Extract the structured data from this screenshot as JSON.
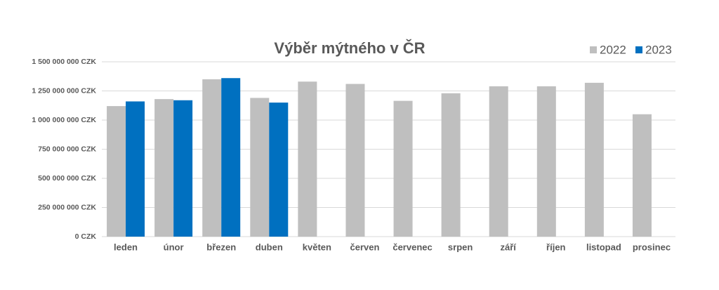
{
  "chart_data": {
    "type": "bar",
    "title": "Výběr mýtného v ČR",
    "categories": [
      "leden",
      "únor",
      "březen",
      "duben",
      "květen",
      "červen",
      "červenec",
      "srpen",
      "září",
      "říjen",
      "listopad",
      "prosinec"
    ],
    "series": [
      {
        "name": "2022",
        "color": "#bfbfbf",
        "values": [
          1120000000,
          1180000000,
          1350000000,
          1190000000,
          1330000000,
          1310000000,
          1165000000,
          1230000000,
          1290000000,
          1290000000,
          1320000000,
          1050000000
        ]
      },
      {
        "name": "2023",
        "color": "#0070c0",
        "values": [
          1160000000,
          1170000000,
          1360000000,
          1150000000,
          null,
          null,
          null,
          null,
          null,
          null,
          null,
          null
        ]
      }
    ],
    "ylim": [
      0,
      1500000000
    ],
    "yticks": [
      {
        "value": 0,
        "label": "0 CZK"
      },
      {
        "value": 250000000,
        "label": "250 000 000 CZK"
      },
      {
        "value": 500000000,
        "label": "500 000 000 CZK"
      },
      {
        "value": 750000000,
        "label": "750 000 000 CZK"
      },
      {
        "value": 1000000000,
        "label": "1 000 000 000 CZK"
      },
      {
        "value": 1250000000,
        "label": "1 250 000 000 CZK"
      },
      {
        "value": 1500000000,
        "label": "1 500 000 000 CZK"
      }
    ],
    "grid": true,
    "legend": "top-right"
  }
}
